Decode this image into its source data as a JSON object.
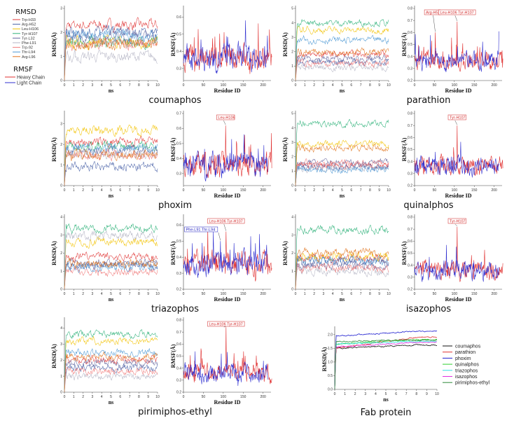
{
  "legend": {
    "rmsd_title": "RMSD",
    "rmsd_items": [
      {
        "name": "Trp-H33",
        "color": "#e03838"
      },
      {
        "name": "Arg-H52",
        "color": "#4a62a8"
      },
      {
        "name": "Leu-H106",
        "color": "#f2c200"
      },
      {
        "name": "Tyr-H107",
        "color": "#2fb27a"
      },
      {
        "name": "Tyr-L32",
        "color": "#6a6aa0"
      },
      {
        "name": "Phe-L91",
        "color": "#b4b4c4"
      },
      {
        "name": "Trp-92",
        "color": "#f07a7a"
      },
      {
        "name": "Thr-L94",
        "color": "#4c98d4"
      },
      {
        "name": "Arg-L96",
        "color": "#e0741e"
      }
    ],
    "rmsf_title": "RMSF",
    "rmsf_items": [
      {
        "name": "Heavy Chain",
        "color": "#e03030"
      },
      {
        "name": "Light Chain",
        "color": "#3030d0"
      }
    ]
  },
  "rmsd_axis": {
    "xlabel": "ns",
    "ylabel": "RMSD(Å)",
    "xticks": [
      "0",
      "1",
      "2",
      "3",
      "4",
      "5",
      "6",
      "7",
      "8",
      "9",
      "10"
    ]
  },
  "rmsf_axis": {
    "xlabel": "Residue ID",
    "ylabel": "RMSF(Å)",
    "xticks": [
      "0",
      "50",
      "100",
      "150",
      "200"
    ]
  },
  "chart_data": [
    {
      "type": "line",
      "title": "coumaphos",
      "rmsd": {
        "ylim": [
          0,
          3
        ],
        "yticks": [
          "0",
          "1",
          "2",
          "3"
        ],
        "series_means": [
          2.3,
          2.0,
          1.6,
          1.6,
          1.8,
          1.0,
          1.5,
          1.9,
          1.5
        ]
      },
      "rmsf": {
        "ylim": [
          0.23,
          0.65
        ],
        "yticks": [
          "0.3",
          "0.4",
          "0.5",
          "0.6"
        ],
        "annotations": []
      }
    },
    {
      "type": "line",
      "title": "parathion",
      "rmsd": {
        "ylim": [
          0,
          5
        ],
        "yticks": [
          "0",
          "1",
          "2",
          "3",
          "4",
          "5"
        ],
        "series_means": [
          1.8,
          1.3,
          3.5,
          4.0,
          1.5,
          0.9,
          1.2,
          2.8,
          2.0
        ]
      },
      "rmsf": {
        "ylim": [
          0.2,
          0.8
        ],
        "yticks": [
          "0.2",
          "0.3",
          "0.4",
          "0.5",
          "0.6",
          "0.7",
          "0.8"
        ],
        "annotations": [
          {
            "text": "Arg-H52",
            "residue": 52,
            "value": 0.6,
            "chain": "heavy"
          },
          {
            "text": "Leu-H106  Tyr-H107",
            "residue": 107,
            "value": 0.69,
            "chain": "heavy"
          }
        ]
      }
    },
    {
      "type": "line",
      "title": "phoxim",
      "rmsd": {
        "ylim": [
          0,
          3.5
        ],
        "yticks": [
          "0",
          "1",
          "2",
          "3"
        ],
        "series_means": [
          2.1,
          0.9,
          2.7,
          1.9,
          1.7,
          1.5,
          1.5,
          1.8,
          1.5
        ]
      },
      "rmsf": {
        "ylim": [
          0.22,
          0.7
        ],
        "yticks": [
          "0.3",
          "0.4",
          "0.5",
          "0.6",
          "0.7"
        ],
        "annotations": [
          {
            "text": "Leu-H106",
            "residue": 106,
            "value": 0.62,
            "chain": "heavy"
          }
        ]
      }
    },
    {
      "type": "line",
      "title": "quinalphos",
      "rmsd": {
        "ylim": [
          0,
          5
        ],
        "yticks": [
          "0",
          "1",
          "2",
          "3",
          "4",
          "5"
        ],
        "series_means": [
          1.4,
          1.3,
          2.9,
          4.3,
          1.6,
          1.2,
          1.5,
          1.1,
          2.6
        ]
      },
      "rmsf": {
        "ylim": [
          0.2,
          0.8
        ],
        "yticks": [
          "0.2",
          "0.3",
          "0.4",
          "0.5",
          "0.6",
          "0.7",
          "0.8"
        ],
        "annotations": [
          {
            "text": "Tyr-H107",
            "residue": 107,
            "value": 0.7,
            "chain": "heavy"
          }
        ]
      }
    },
    {
      "type": "line",
      "title": "triazophos",
      "rmsd": {
        "ylim": [
          0,
          4
        ],
        "yticks": [
          "0",
          "1",
          "2",
          "3",
          "4"
        ],
        "series_means": [
          1.8,
          1.3,
          2.6,
          3.4,
          1.5,
          3.0,
          1.0,
          1.2,
          1.4
        ]
      },
      "rmsf": {
        "ylim": [
          0.2,
          0.65
        ],
        "yticks": [
          "0.2",
          "0.3",
          "0.4",
          "0.5",
          "0.6"
        ],
        "annotations": [
          {
            "text": "Leu-H106  Tyr-H107",
            "residue": 107,
            "value": 0.56,
            "chain": "heavy"
          },
          {
            "text": "Phe-L91  Thr-L94",
            "residue": 93,
            "value": 0.5,
            "chain": "light"
          }
        ]
      }
    },
    {
      "type": "line",
      "title": "isazophos",
      "rmsd": {
        "ylim": [
          0,
          4
        ],
        "yticks": [
          "0",
          "1",
          "2",
          "3",
          "4"
        ],
        "series_means": [
          1.7,
          1.5,
          1.8,
          3.3,
          1.3,
          1.0,
          1.2,
          1.6,
          2.0
        ]
      },
      "rmsf": {
        "ylim": [
          0.2,
          0.8
        ],
        "yticks": [
          "0.2",
          "0.3",
          "0.4",
          "0.5",
          "0.6",
          "0.7",
          "0.8"
        ],
        "annotations": [
          {
            "text": "Tyr-H107",
            "residue": 107,
            "value": 0.72,
            "chain": "heavy"
          }
        ]
      }
    },
    {
      "type": "line",
      "title": "pirimiphos-ethyl",
      "rmsd": {
        "ylim": [
          0,
          4.5
        ],
        "yticks": [
          "0",
          "1",
          "2",
          "3",
          "4"
        ],
        "series_means": [
          2.0,
          1.5,
          3.2,
          3.6,
          1.8,
          1.0,
          1.3,
          2.5,
          2.2
        ]
      },
      "rmsf": {
        "ylim": [
          0.2,
          0.8
        ],
        "yticks": [
          "0.2",
          "0.3",
          "0.4",
          "0.5",
          "0.6",
          "0.7",
          "0.8"
        ],
        "annotations": [
          {
            "text": "Leu-H106  Tyr-H107",
            "residue": 107,
            "value": 0.74,
            "chain": "heavy"
          }
        ]
      }
    },
    {
      "type": "line",
      "title": "Fab protein",
      "xlabel": "ns",
      "ylabel": "RMSD(Å)",
      "ylim": [
        0,
        2.2
      ],
      "yticks": [
        "0.0",
        "0.5",
        "1.0",
        "1.5",
        "2.0"
      ],
      "xticks": [
        "0",
        "1",
        "2",
        "3",
        "4",
        "5",
        "6",
        "7",
        "8",
        "9",
        "10"
      ],
      "series": [
        {
          "name": "coumaphos",
          "color": "#111111",
          "start": 1.5,
          "end": 1.62
        },
        {
          "name": "parathion",
          "color": "#e03030",
          "start": 1.5,
          "end": 1.9
        },
        {
          "name": "phoxim",
          "color": "#2020d0",
          "start": 1.95,
          "end": 2.12
        },
        {
          "name": "quinalphos",
          "color": "#30d030",
          "start": 1.65,
          "end": 1.82
        },
        {
          "name": "triazophos",
          "color": "#30e0e0",
          "start": 1.65,
          "end": 1.75
        },
        {
          "name": "isazophos",
          "color": "#e030e0",
          "start": 1.55,
          "end": 1.72
        },
        {
          "name": "pirimiphos-ethyl",
          "color": "#2e8a3a",
          "start": 1.75,
          "end": 1.8
        }
      ]
    }
  ]
}
